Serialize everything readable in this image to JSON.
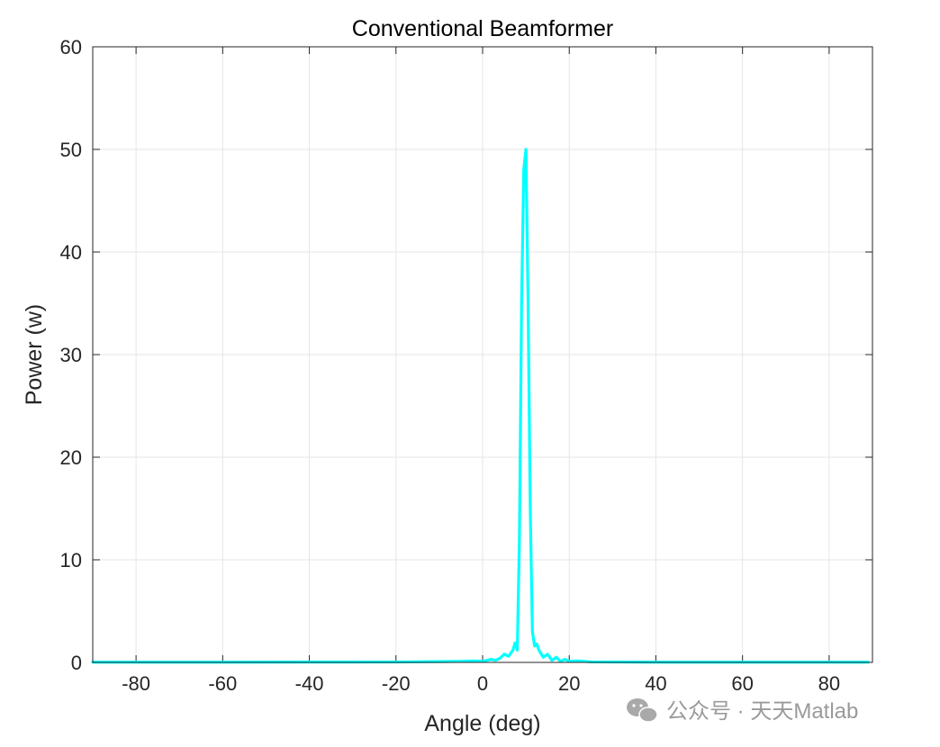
{
  "chart_data": {
    "type": "line",
    "title": "Conventional Beamformer",
    "xlabel": "Angle (deg)",
    "ylabel": "Power (w)",
    "xlim": [
      -90,
      90
    ],
    "ylim": [
      0,
      60
    ],
    "xticks": [
      -80,
      -60,
      -40,
      -20,
      0,
      20,
      40,
      60,
      80
    ],
    "yticks": [
      0,
      10,
      20,
      30,
      40,
      50,
      60
    ],
    "grid": true,
    "line_color": "#00FFFF",
    "series": [
      {
        "x": [
          -90,
          -80,
          -60,
          -40,
          -20,
          -10,
          -5,
          -2,
          0,
          2,
          3,
          4,
          5,
          6,
          7,
          7.5,
          8,
          8.5,
          9,
          9.5,
          10,
          10.5,
          11,
          11.5,
          12,
          12.5,
          13,
          14,
          15,
          16,
          17,
          18,
          19,
          20,
          22,
          25,
          30,
          40,
          60,
          80,
          89
        ],
        "y": [
          0.02,
          0.02,
          0.02,
          0.03,
          0.04,
          0.08,
          0.1,
          0.15,
          0.1,
          0.3,
          0.2,
          0.4,
          0.8,
          0.6,
          1.2,
          1.9,
          1.2,
          12,
          35,
          48,
          50,
          35,
          15,
          3,
          1.6,
          1.8,
          1.2,
          0.5,
          0.8,
          0.2,
          0.5,
          0.1,
          0.3,
          0.1,
          0.15,
          0.05,
          0.04,
          0.02,
          0.02,
          0.02,
          0.02
        ]
      }
    ]
  },
  "watermark": {
    "text": "公众号 · 天天Matlab",
    "icon": "wechat-icon"
  }
}
